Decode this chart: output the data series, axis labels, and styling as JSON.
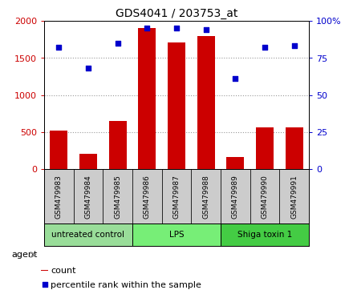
{
  "title": "GDS4041 / 203753_at",
  "samples": [
    "GSM479983",
    "GSM479984",
    "GSM479985",
    "GSM479986",
    "GSM479987",
    "GSM479988",
    "GSM479989",
    "GSM479990",
    "GSM479991"
  ],
  "counts": [
    520,
    210,
    650,
    1900,
    1710,
    1790,
    160,
    560,
    560
  ],
  "percentiles": [
    82,
    68,
    85,
    95,
    95,
    94,
    61,
    82,
    83
  ],
  "ylim_left": [
    0,
    2000
  ],
  "ylim_right": [
    0,
    100
  ],
  "yticks_left": [
    0,
    500,
    1000,
    1500,
    2000
  ],
  "yticks_right": [
    0,
    25,
    50,
    75,
    100
  ],
  "ytick_labels_left": [
    "0",
    "500",
    "1000",
    "1500",
    "2000"
  ],
  "ytick_labels_right": [
    "0",
    "25",
    "50",
    "75",
    "100%"
  ],
  "bar_color": "#cc0000",
  "dot_color": "#0000cc",
  "groups": [
    {
      "label": "untreated control",
      "start": 0,
      "end": 3,
      "color": "#99dd99"
    },
    {
      "label": "LPS",
      "start": 3,
      "end": 6,
      "color": "#77ee77"
    },
    {
      "label": "Shiga toxin 1",
      "start": 6,
      "end": 9,
      "color": "#44cc44"
    }
  ],
  "sample_box_color": "#cccccc",
  "legend_count": "count",
  "legend_percentile": "percentile rank within the sample",
  "plot_bg": "#ffffff"
}
